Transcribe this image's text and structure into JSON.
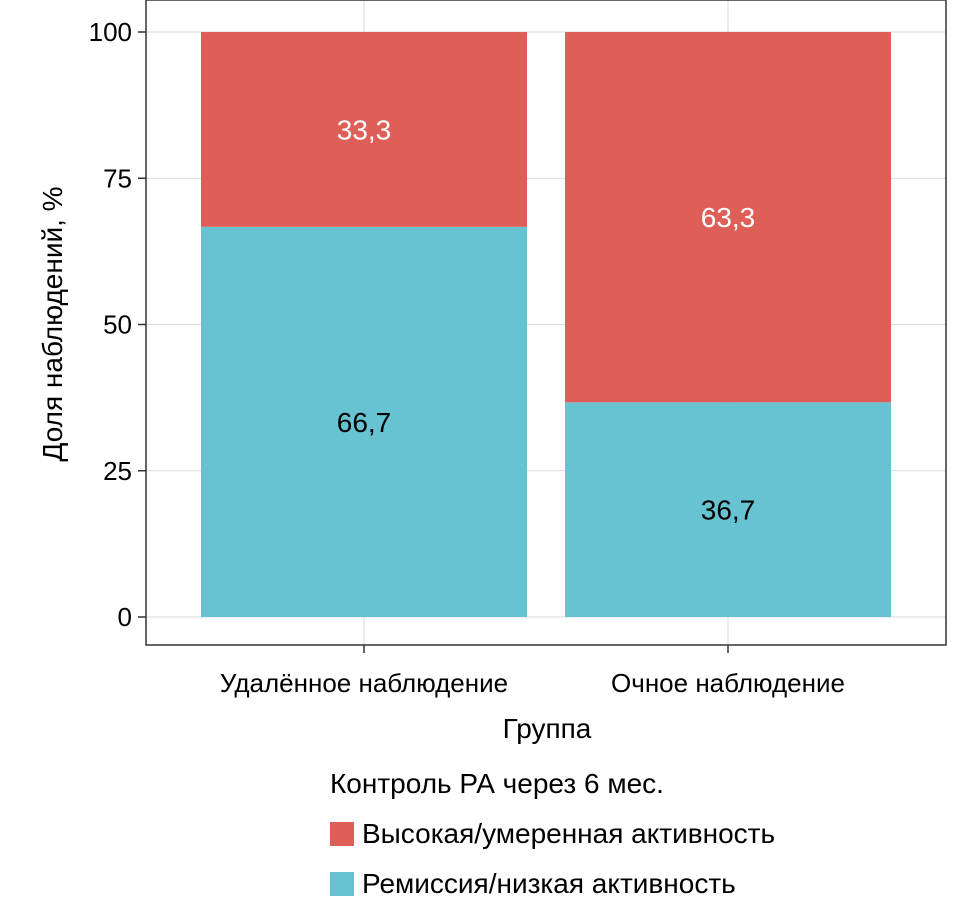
{
  "chart_data": {
    "type": "bar",
    "stacked": true,
    "categories": [
      "Удалённое наблюдение",
      "Очное наблюдение"
    ],
    "series": [
      {
        "name": "Ремиссия/низкая активность",
        "values": [
          66.7,
          36.7
        ],
        "color": "#67C3D1",
        "label_color": "#000000"
      },
      {
        "name": "Высокая/умеренная активность",
        "values": [
          33.3,
          63.3
        ],
        "color": "#DE5F58",
        "label_color": "#FFFFFF"
      }
    ],
    "data_labels": [
      [
        "66,7",
        "36,7"
      ],
      [
        "33,3",
        "63,3"
      ]
    ],
    "xlabel": "Группа",
    "ylabel": "Доля наблюдений, %",
    "ylim": [
      0,
      100
    ],
    "yticks": [
      0,
      25,
      50,
      75,
      100
    ],
    "ytick_labels": [
      "0",
      "25",
      "50",
      "75",
      "100"
    ],
    "grid": true,
    "legend": {
      "title": "Контроль РА через 6 мес.",
      "position": "bottom",
      "items": [
        "Высокая/умеренная активность",
        "Ремиссия/низкая активность"
      ]
    },
    "colors": {
      "grid": "#D9D9D9",
      "frame": "#333333"
    }
  }
}
